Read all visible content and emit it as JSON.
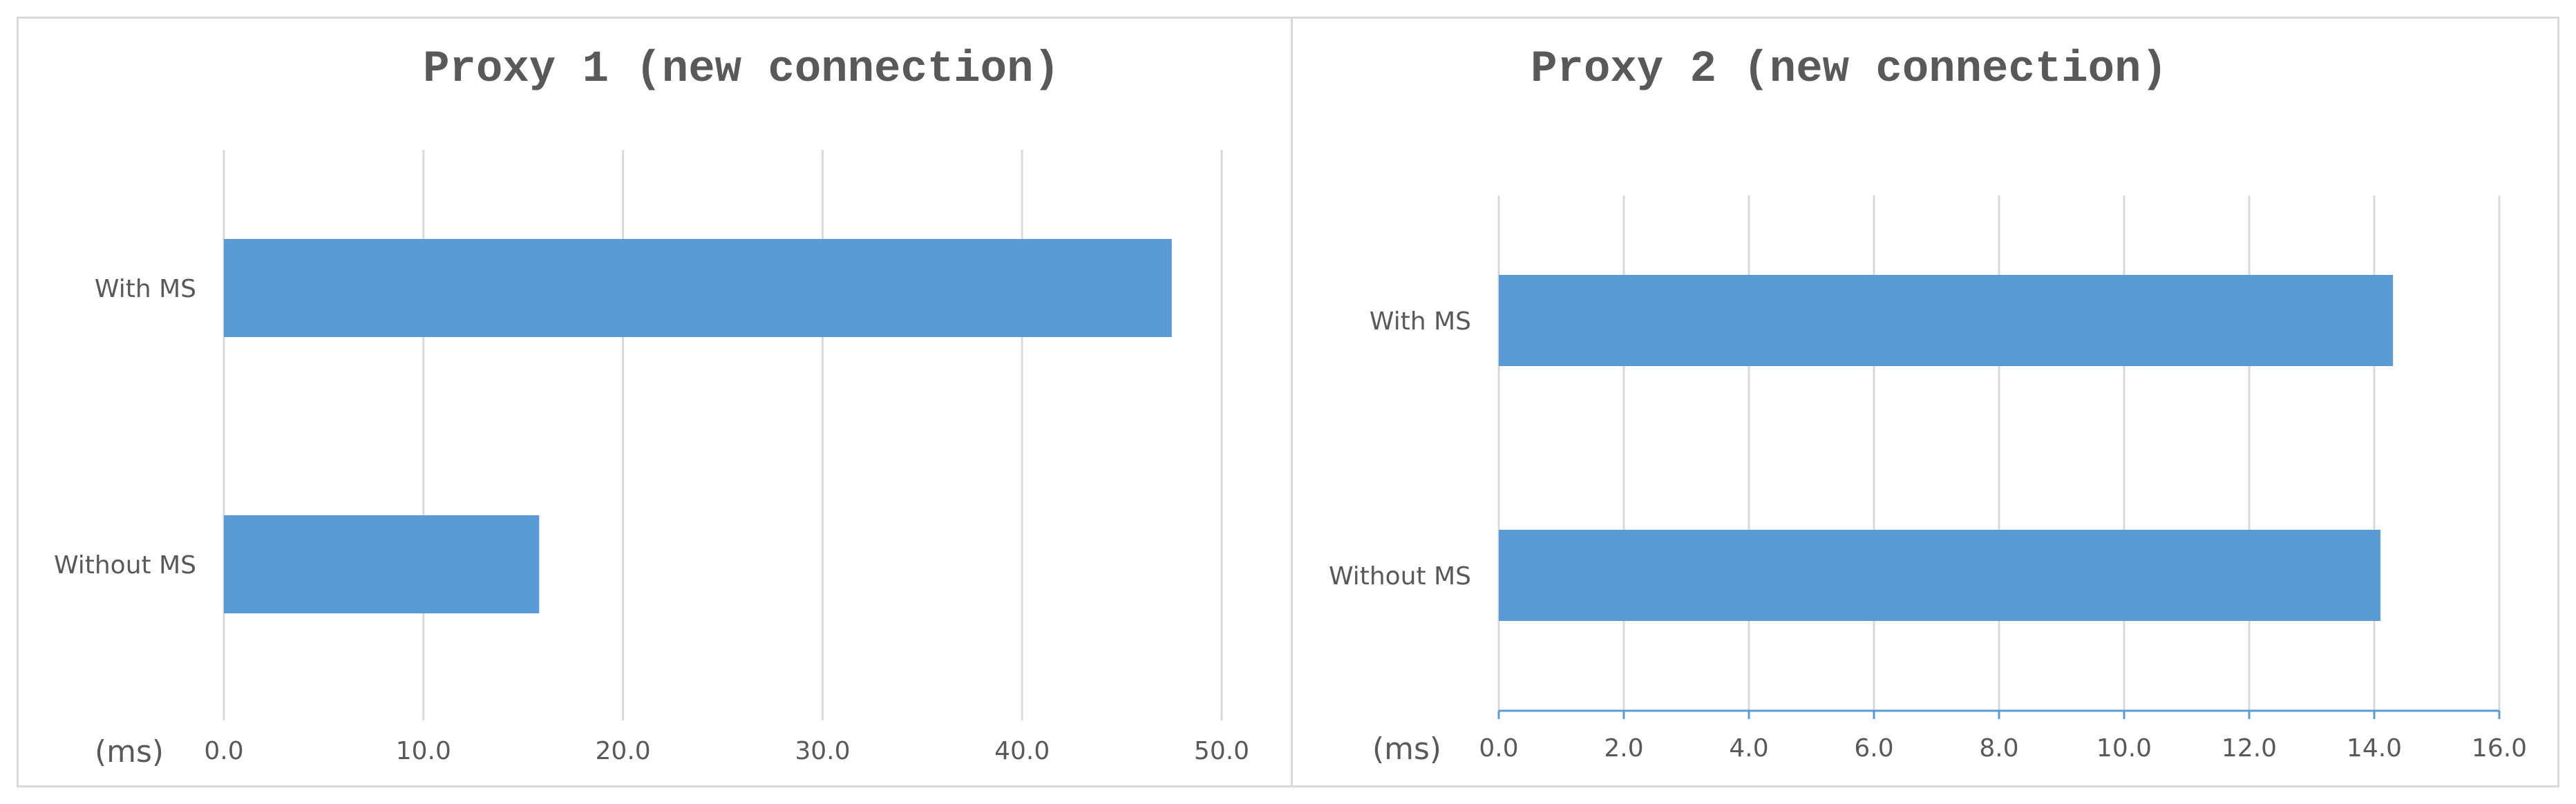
{
  "chart_data": [
    {
      "type": "bar",
      "orientation": "horizontal",
      "title": "Proxy 1 (new connection)",
      "unit_label": "(ms)",
      "categories": [
        "With MS",
        "Without MS"
      ],
      "values": [
        47.5,
        15.8
      ],
      "xlim": [
        0,
        50
      ],
      "x_ticks": [
        "0.0",
        "10.0",
        "20.0",
        "30.0",
        "40.0",
        "50.0"
      ],
      "grid": true,
      "bar_color": "#5b9bd5",
      "grid_color": "#d9d9d9"
    },
    {
      "type": "bar",
      "orientation": "horizontal",
      "title": "Proxy 2 (new connection)",
      "unit_label": "(ms)",
      "categories": [
        "With MS",
        "Without MS"
      ],
      "values": [
        14.3,
        14.1
      ],
      "xlim": [
        0,
        16
      ],
      "x_ticks": [
        "0.0",
        "2.0",
        "4.0",
        "6.0",
        "8.0",
        "10.0",
        "12.0",
        "14.0",
        "16.0"
      ],
      "grid": true,
      "bar_color": "#5b9bd5",
      "grid_color": "#d9d9d9",
      "axis_color": "#5b9bd5"
    }
  ]
}
